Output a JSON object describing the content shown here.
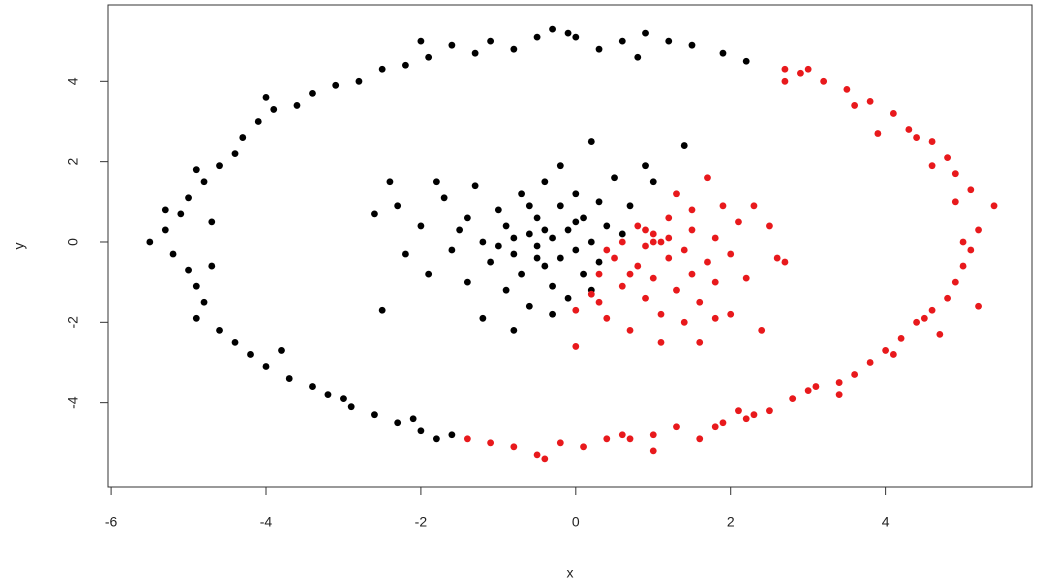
{
  "chart_data": {
    "type": "scatter",
    "xlabel": "x",
    "ylabel": "y",
    "xlim": [
      -6.04,
      5.89
    ],
    "ylim": [
      -6.1,
      5.9
    ],
    "xticks": [
      -6,
      -4,
      -2,
      0,
      2,
      4
    ],
    "yticks": [
      -4,
      -2,
      0,
      2,
      4
    ],
    "series": [
      {
        "color": "#000000",
        "x": [
          2.2,
          1.9,
          1.5,
          1.2,
          0.9,
          0.6,
          0.3,
          0.0,
          -0.3,
          -0.5,
          -0.8,
          -1.1,
          -1.3,
          -1.6,
          -1.9,
          -2.2,
          -2.5,
          -2.8,
          -3.1,
          -3.4,
          -3.6,
          -3.9,
          -4.1,
          -4.3,
          -4.4,
          -4.6,
          -4.8,
          -5.0,
          -5.1,
          -5.3,
          -5.5,
          -5.2,
          -5.0,
          -4.9,
          -4.8,
          -4.9,
          -4.6,
          -4.4,
          -4.2,
          -4.0,
          -3.7,
          -3.4,
          -3.2,
          -2.9,
          -2.6,
          -2.3,
          -2.0,
          -1.8,
          -1.6,
          -5.3,
          -4.7,
          -4.7,
          -3.8,
          -2.1,
          -4.0,
          -2.0,
          0.8,
          -0.1,
          -4.9,
          -3.0,
          -2.6,
          -2.4,
          -2.2,
          -2.0,
          -1.9,
          -1.7,
          -1.6,
          -1.5,
          -1.4,
          -1.3,
          -1.2,
          -1.1,
          -1.0,
          -0.9,
          -0.9,
          -0.8,
          -0.7,
          -0.7,
          -0.6,
          -0.6,
          -0.5,
          -0.5,
          -0.4,
          -0.4,
          -0.3,
          -0.3,
          -0.2,
          -0.2,
          -0.1,
          -0.1,
          0.0,
          0.0,
          0.1,
          0.1,
          0.2,
          0.2,
          0.3,
          0.3,
          0.4,
          0.5,
          0.6,
          0.7,
          0.9,
          1.0,
          1.4,
          -2.5,
          -1.2,
          -0.8,
          -1.8,
          -0.2,
          -0.6,
          -1.4,
          -0.3,
          0.2,
          -2.3,
          -1.0,
          -0.4,
          -0.5,
          0.0,
          -0.8
        ],
        "values": [
          4.5,
          4.7,
          4.9,
          5.0,
          5.2,
          5.0,
          4.8,
          5.1,
          5.3,
          5.1,
          4.8,
          5.0,
          4.7,
          4.9,
          4.6,
          4.4,
          4.3,
          4.0,
          3.9,
          3.7,
          3.4,
          3.3,
          3.0,
          2.6,
          2.2,
          1.9,
          1.5,
          1.1,
          0.7,
          0.3,
          0.0,
          -0.3,
          -0.7,
          -1.1,
          -1.5,
          -1.9,
          -2.2,
          -2.5,
          -2.8,
          -3.1,
          -3.4,
          -3.6,
          -3.8,
          -4.1,
          -4.3,
          -4.5,
          -4.7,
          -4.9,
          -4.8,
          0.8,
          0.5,
          -0.6,
          -2.7,
          -4.4,
          3.6,
          5.0,
          4.6,
          5.2,
          1.8,
          -3.9,
          0.7,
          1.5,
          -0.3,
          0.4,
          -0.8,
          1.1,
          -0.2,
          0.3,
          -1.0,
          1.4,
          0.0,
          -0.5,
          0.8,
          -1.2,
          0.4,
          -0.3,
          1.2,
          -0.8,
          0.2,
          -1.6,
          0.6,
          -0.1,
          1.5,
          -0.6,
          0.1,
          -1.1,
          0.9,
          -0.4,
          0.3,
          -1.4,
          1.2,
          -0.2,
          0.6,
          -0.8,
          2.5,
          0.0,
          1.0,
          -0.5,
          0.4,
          1.6,
          0.2,
          0.9,
          1.9,
          1.5,
          2.4,
          -1.7,
          -1.9,
          -2.2,
          1.5,
          1.9,
          0.9,
          0.6,
          -1.8,
          -1.2,
          0.9,
          -0.1,
          0.3,
          -0.4,
          0.5,
          0.1
        ]
      },
      {
        "color": "#e8191c",
        "x": [
          -1.4,
          -1.1,
          -0.8,
          -0.5,
          -0.2,
          0.1,
          0.4,
          0.7,
          1.0,
          1.3,
          1.6,
          1.9,
          2.2,
          2.5,
          2.8,
          3.1,
          3.4,
          3.6,
          3.8,
          4.0,
          4.2,
          4.4,
          4.6,
          4.8,
          4.9,
          5.0,
          5.1,
          5.2,
          5.4,
          5.1,
          4.9,
          4.8,
          4.6,
          4.3,
          4.1,
          3.8,
          3.5,
          3.2,
          2.9,
          2.7,
          1.0,
          1.8,
          3.0,
          4.1,
          4.7,
          5.0,
          4.9,
          4.4,
          3.6,
          3.0,
          -0.4,
          0.6,
          2.3,
          3.4,
          4.5,
          5.2,
          4.6,
          3.9,
          2.7,
          2.1,
          0.0,
          0.0,
          0.2,
          0.3,
          0.4,
          0.5,
          0.6,
          0.6,
          0.7,
          0.8,
          0.8,
          0.9,
          0.9,
          1.0,
          1.0,
          1.1,
          1.1,
          1.2,
          1.2,
          1.3,
          1.3,
          1.4,
          1.4,
          1.5,
          1.5,
          1.6,
          1.7,
          1.7,
          1.8,
          1.8,
          1.9,
          2.0,
          2.0,
          2.1,
          2.2,
          2.3,
          2.4,
          2.5,
          2.6,
          1.1,
          0.4,
          0.7,
          1.0,
          1.2,
          0.9,
          1.6,
          1.8,
          0.3,
          2.7,
          1.5
        ],
        "values": [
          -4.9,
          -5.0,
          -5.1,
          -5.3,
          -5.0,
          -5.1,
          -4.9,
          -4.9,
          -4.8,
          -4.6,
          -4.9,
          -4.5,
          -4.4,
          -4.2,
          -3.9,
          -3.6,
          -3.5,
          -3.3,
          -3.0,
          -2.7,
          -2.4,
          -2.0,
          -1.7,
          -1.4,
          -1.0,
          -0.6,
          -0.2,
          0.3,
          0.9,
          1.3,
          1.7,
          2.1,
          2.5,
          2.8,
          3.2,
          3.5,
          3.8,
          4.0,
          4.2,
          4.3,
          -5.2,
          -4.6,
          -3.7,
          -2.8,
          -2.3,
          0.0,
          1.0,
          2.6,
          3.4,
          4.3,
          -5.4,
          -4.8,
          -4.3,
          -3.8,
          -1.9,
          -1.6,
          1.9,
          2.7,
          4.0,
          -4.2,
          -1.7,
          -2.6,
          -1.3,
          -0.8,
          -1.9,
          -0.4,
          -1.1,
          0.0,
          -2.2,
          -0.6,
          0.4,
          -1.4,
          -0.1,
          0.2,
          -0.9,
          -1.8,
          0.0,
          0.6,
          -0.4,
          -1.2,
          1.2,
          -0.2,
          -2.0,
          0.3,
          -0.8,
          -1.5,
          1.6,
          -0.5,
          0.1,
          -1.0,
          0.9,
          -1.8,
          -0.3,
          0.5,
          -0.9,
          0.9,
          -2.2,
          0.4,
          -0.4,
          -2.5,
          -0.2,
          -0.8,
          0.0,
          0.1,
          0.3,
          -2.5,
          -1.9,
          -1.5,
          -0.5,
          0.8
        ]
      }
    ]
  }
}
